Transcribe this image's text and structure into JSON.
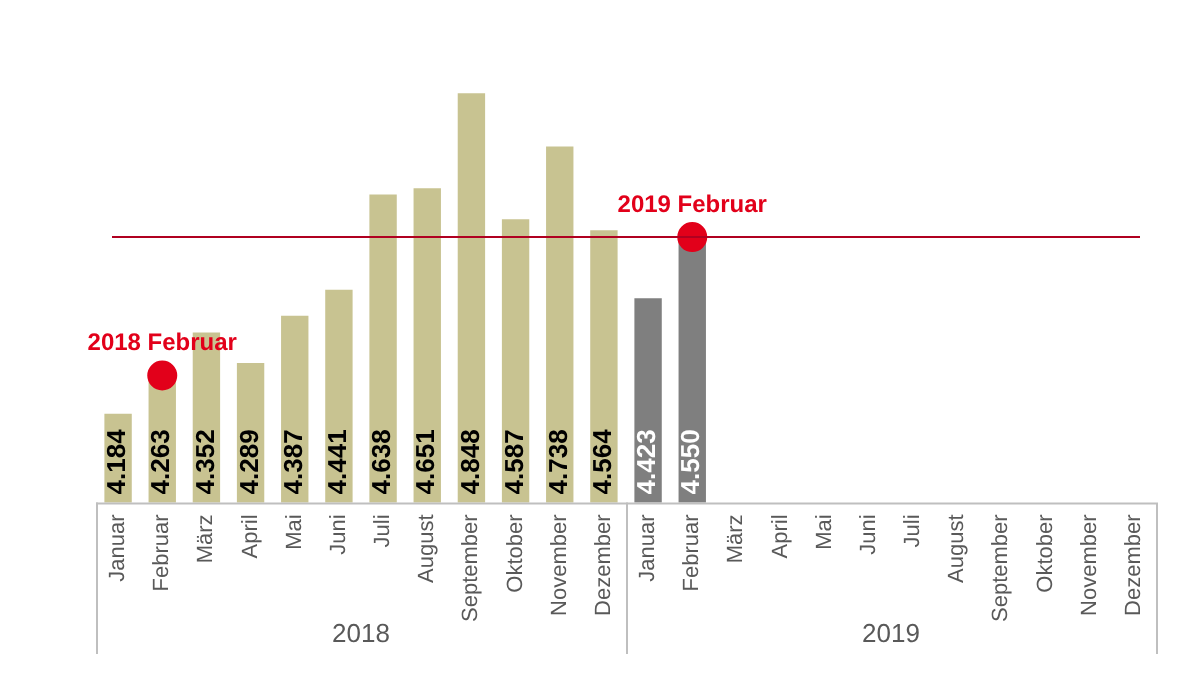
{
  "chart_data": {
    "type": "bar",
    "categories": [
      "Januar",
      "Februar",
      "März",
      "April",
      "Mai",
      "Juni",
      "Juli",
      "August",
      "September",
      "Oktober",
      "November",
      "Dezember",
      "Januar",
      "Februar",
      "März",
      "April",
      "Mai",
      "Juni",
      "Juli",
      "August",
      "September",
      "Oktober",
      "November",
      "Dezember"
    ],
    "series": [
      {
        "colors": [
          "#c8c391",
          "#c8c391",
          "#c8c391",
          "#c8c391",
          "#c8c391",
          "#c8c391",
          "#c8c391",
          "#c8c391",
          "#c8c391",
          "#c8c391",
          "#c8c391",
          "#c8c391",
          "#7f7f7f",
          "#7f7f7f",
          "#7f7f7f",
          "#7f7f7f",
          "#7f7f7f",
          "#7f7f7f",
          "#7f7f7f",
          "#7f7f7f",
          "#7f7f7f",
          "#7f7f7f",
          "#7f7f7f",
          "#7f7f7f"
        ],
        "values": [
          4184,
          4263,
          4352,
          4289,
          4387,
          4441,
          4638,
          4651,
          4848,
          4587,
          4738,
          4564,
          4423,
          4550,
          null,
          null,
          null,
          null,
          null,
          null,
          null,
          null,
          null,
          null
        ],
        "value_labels": [
          "4.184",
          "4.263",
          "4.352",
          "4.289",
          "4.387",
          "4.441",
          "4.638",
          "4.651",
          "4.848",
          "4.587",
          "4.738",
          "4.564",
          "4.423",
          "4.550",
          null,
          null,
          null,
          null,
          null,
          null,
          null,
          null,
          null,
          null
        ]
      },
      {
        "type": "scatter",
        "color": "#e2001a",
        "values": [
          null,
          4263,
          null,
          null,
          null,
          null,
          null,
          null,
          null,
          null,
          null,
          null,
          null,
          4550,
          null,
          null,
          null,
          null,
          null,
          null,
          null,
          null,
          null,
          null
        ],
        "value_labels": [
          null,
          "2018 Februar",
          null,
          null,
          null,
          null,
          null,
          null,
          null,
          null,
          null,
          null,
          null,
          "2019 Februar",
          null,
          null,
          null,
          null,
          null,
          null,
          null,
          null,
          null,
          null
        ]
      }
    ],
    "tick_labels": "x",
    "marker": "circle",
    "ref_lines": [
      {
        "axis": "y",
        "value": 4550,
        "color": "#b00020"
      }
    ],
    "annotations": [
      "2018",
      "2019"
    ]
  }
}
